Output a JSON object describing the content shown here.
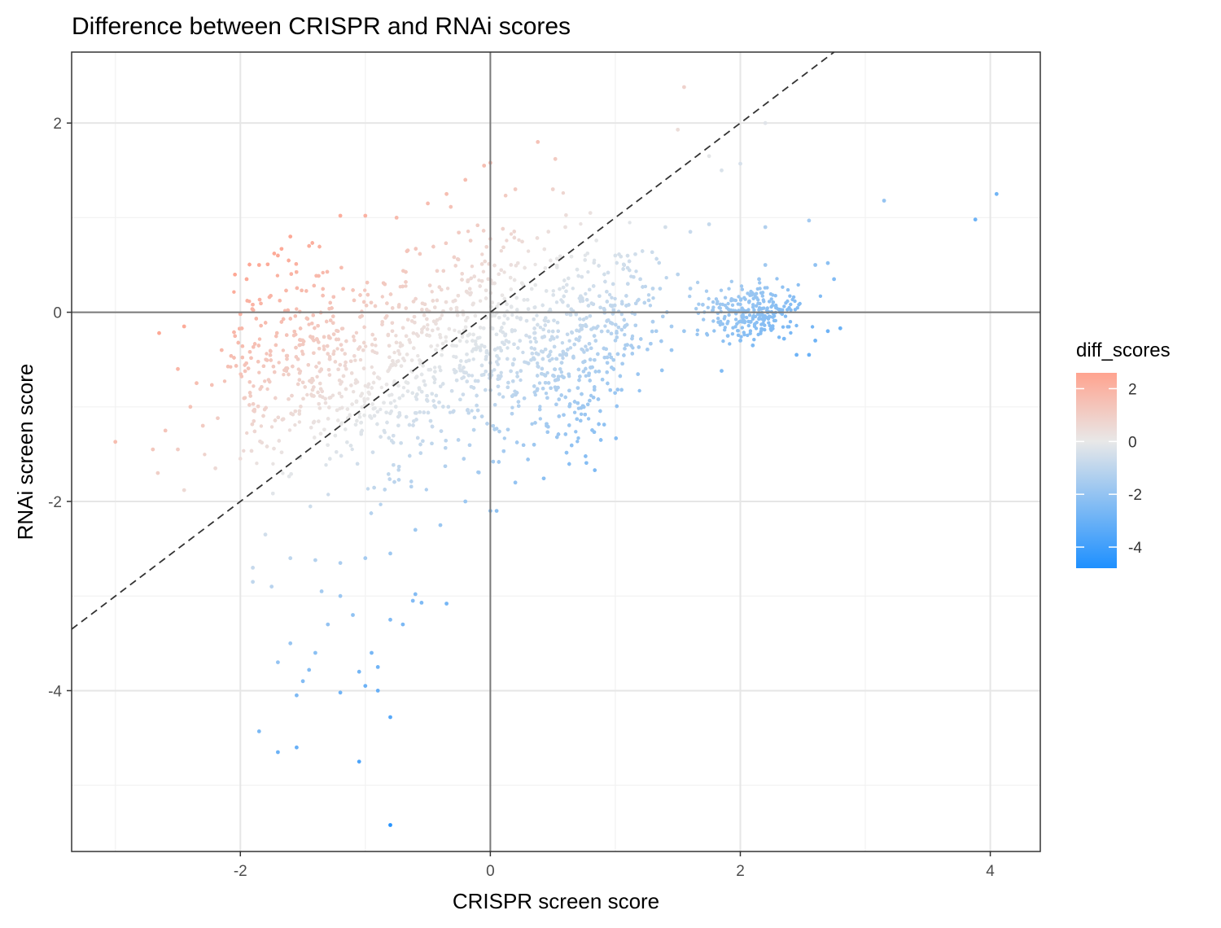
{
  "chart_data": {
    "type": "scatter",
    "title": "Difference between CRISPR and RNAi scores",
    "xlabel": "CRISPR screen score",
    "ylabel": "RNAi screen score",
    "xlim": [
      -3.35,
      4.4
    ],
    "ylim": [
      -5.7,
      2.75
    ],
    "x_ticks": [
      -2,
      0,
      2,
      4
    ],
    "x_tick_labels": [
      "-2",
      "0",
      "2",
      "4"
    ],
    "y_ticks": [
      2,
      0,
      -2,
      -4
    ],
    "y_tick_labels": [
      "2",
      "0",
      "-2",
      "-4"
    ],
    "x_minor_ticks": [
      -3,
      -1,
      1,
      3
    ],
    "y_minor_ticks": [
      1,
      -1,
      -3,
      -5
    ],
    "grid": true,
    "reference_lines": {
      "hline": 0,
      "vline": 0,
      "diagonal": {
        "slope": 1,
        "intercept": 0,
        "style": "dashed"
      }
    },
    "color_variable": "diff_scores",
    "color_scale": {
      "low": "#1e90ff",
      "mid": "#e8e8e8",
      "high": "#ffa38f",
      "limits": [
        -4.8,
        2.6
      ],
      "breaks": [
        2,
        0,
        -2,
        -4
      ],
      "break_labels": [
        "2",
        "0",
        "-2",
        "-4"
      ]
    },
    "legend_position": "right",
    "points": [
      [
        -3.0,
        -1.37
      ],
      [
        -2.7,
        -1.45
      ],
      [
        -2.66,
        -1.7
      ],
      [
        -2.6,
        -1.25
      ],
      [
        -2.5,
        -1.45
      ],
      [
        -2.45,
        -1.88
      ],
      [
        -2.4,
        -1.0
      ],
      [
        -2.5,
        -0.6
      ],
      [
        -2.65,
        -0.22
      ],
      [
        -2.45,
        -0.15
      ],
      [
        -2.35,
        -0.75
      ],
      [
        -2.3,
        -1.2
      ],
      [
        -2.2,
        -1.65
      ],
      [
        -2.15,
        -0.4
      ],
      [
        -1.9,
        -2.85
      ],
      [
        -1.9,
        -2.7
      ],
      [
        -1.75,
        -2.9
      ],
      [
        -1.7,
        -3.7
      ],
      [
        -1.6,
        -3.5
      ],
      [
        -1.55,
        -4.05
      ],
      [
        -1.5,
        -3.9
      ],
      [
        -1.45,
        -3.78
      ],
      [
        -1.4,
        -3.6
      ],
      [
        -1.3,
        -3.3
      ],
      [
        -1.35,
        -2.95
      ],
      [
        -1.2,
        -4.02
      ],
      [
        -1.05,
        -3.8
      ],
      [
        -1.0,
        -3.95
      ],
      [
        -0.9,
        -4.0
      ],
      [
        -0.8,
        -4.28
      ],
      [
        -0.95,
        -3.6
      ],
      [
        -0.9,
        -3.75
      ],
      [
        -0.8,
        -3.25
      ],
      [
        -0.7,
        -3.3
      ],
      [
        -0.6,
        -2.98
      ],
      [
        -0.55,
        -3.07
      ],
      [
        -0.35,
        -3.08
      ],
      [
        -0.62,
        -3.05
      ],
      [
        -1.1,
        -3.2
      ],
      [
        -1.2,
        -3.0
      ],
      [
        -1.85,
        -4.43
      ],
      [
        -1.7,
        -4.65
      ],
      [
        -1.55,
        -4.6
      ],
      [
        -1.05,
        -4.75
      ],
      [
        -0.8,
        -5.42
      ],
      [
        -2.0,
        -0.02
      ],
      [
        -1.95,
        0.35
      ],
      [
        -1.85,
        0.5
      ],
      [
        -1.7,
        0.6
      ],
      [
        -1.6,
        0.8
      ],
      [
        -1.45,
        0.7
      ],
      [
        -1.2,
        1.02
      ],
      [
        -1.0,
        1.02
      ],
      [
        -0.75,
        1.0
      ],
      [
        -0.5,
        1.15
      ],
      [
        -0.35,
        1.25
      ],
      [
        -0.2,
        1.4
      ],
      [
        -0.05,
        1.55
      ],
      [
        0.0,
        1.58
      ],
      [
        0.2,
        1.3
      ],
      [
        0.5,
        1.3
      ],
      [
        0.38,
        1.8
      ],
      [
        0.52,
        1.62
      ],
      [
        0.8,
        1.05
      ],
      [
        0.6,
        0.9
      ],
      [
        1.55,
        2.38
      ],
      [
        1.5,
        1.93
      ],
      [
        1.75,
        1.65
      ],
      [
        2.0,
        1.57
      ],
      [
        1.85,
        1.5
      ],
      [
        2.2,
        2.0
      ],
      [
        1.0,
        0.6
      ],
      [
        1.1,
        0.3
      ],
      [
        1.2,
        0.35
      ],
      [
        1.3,
        0.25
      ],
      [
        1.4,
        0.9
      ],
      [
        1.6,
        0.85
      ],
      [
        1.75,
        0.93
      ],
      [
        1.5,
        0.4
      ],
      [
        1.6,
        0.25
      ],
      [
        1.7,
        0.08
      ],
      [
        1.45,
        -0.15
      ],
      [
        1.55,
        -0.2
      ],
      [
        1.3,
        -0.1
      ],
      [
        1.45,
        -0.4
      ],
      [
        1.05,
        -0.82
      ],
      [
        1.85,
        -0.62
      ],
      [
        2.2,
        0.9
      ],
      [
        2.55,
        0.97
      ],
      [
        2.6,
        0.5
      ],
      [
        2.7,
        0.52
      ],
      [
        2.75,
        0.35
      ],
      [
        2.8,
        -0.17
      ],
      [
        2.7,
        -0.2
      ],
      [
        2.6,
        -0.3
      ],
      [
        2.55,
        -0.45
      ],
      [
        2.45,
        -0.45
      ],
      [
        2.35,
        -0.28
      ],
      [
        2.1,
        -0.35
      ],
      [
        2.0,
        -0.3
      ],
      [
        1.9,
        -0.25
      ],
      [
        2.15,
        0.35
      ],
      [
        2.2,
        0.5
      ],
      [
        3.15,
        1.18
      ],
      [
        3.88,
        0.98
      ],
      [
        4.05,
        1.25
      ],
      [
        0.8,
        -0.5
      ],
      [
        0.7,
        -0.8
      ],
      [
        0.55,
        -1.1
      ],
      [
        0.45,
        -1.2
      ],
      [
        0.35,
        -1.4
      ],
      [
        0.2,
        -1.8
      ],
      [
        0.05,
        -2.1
      ],
      [
        0.0,
        -2.1
      ],
      [
        -0.2,
        -2.0
      ],
      [
        -0.4,
        -2.25
      ],
      [
        -0.6,
        -2.3
      ],
      [
        -0.8,
        -2.55
      ],
      [
        -1.0,
        -2.6
      ],
      [
        -1.2,
        -2.65
      ],
      [
        -1.4,
        -2.62
      ],
      [
        -1.6,
        -2.6
      ],
      [
        -1.8,
        -2.35
      ]
    ],
    "point_cloud": {
      "description": "dense band of gene-level points centered on the diagonal",
      "anchors": [
        [
          -2.0,
          -0.7
        ],
        [
          -1.5,
          -0.5
        ],
        [
          -1.0,
          -0.7
        ],
        [
          -0.5,
          -0.5
        ],
        [
          0.0,
          -0.2
        ],
        [
          0.4,
          -0.3
        ],
        [
          0.8,
          -0.4
        ],
        [
          1.1,
          0.05
        ]
      ],
      "cluster": {
        "center": [
          2.1,
          0.0
        ],
        "note": "secondary cluster near x=2, y=0"
      }
    }
  }
}
